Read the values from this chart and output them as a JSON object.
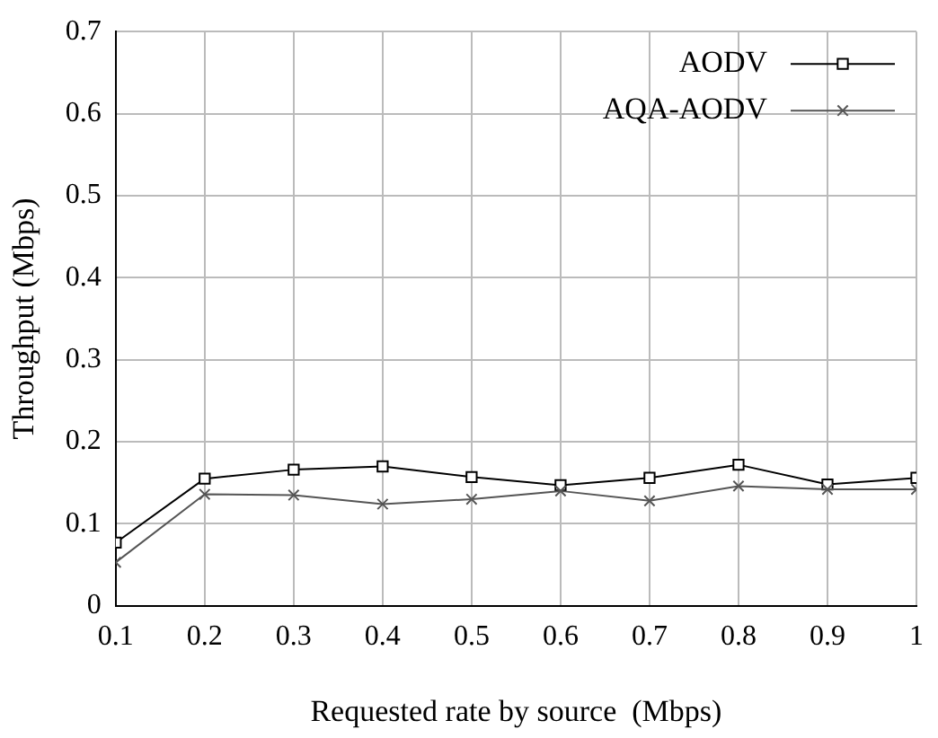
{
  "chart_data": {
    "type": "line",
    "xlabel": "Requested rate by source  (Mbps)",
    "ylabel": "Throughput (Mbps)",
    "x": [
      0.1,
      0.2,
      0.3,
      0.4,
      0.5,
      0.6,
      0.7,
      0.8,
      0.9,
      1
    ],
    "series": [
      {
        "name": "AODV",
        "color": "#000000",
        "marker": "square",
        "values": [
          0.077,
          0.155,
          0.166,
          0.17,
          0.157,
          0.147,
          0.156,
          0.172,
          0.148,
          0.156
        ]
      },
      {
        "name": "AQA-AODV",
        "color": "#555555",
        "marker": "cross",
        "values": [
          0.053,
          0.136,
          0.135,
          0.124,
          0.13,
          0.14,
          0.128,
          0.146,
          0.142,
          0.142
        ]
      }
    ],
    "xlim": [
      0.1,
      1
    ],
    "xticks": [
      0.1,
      0.2,
      0.3,
      0.4,
      0.5,
      0.6,
      0.7,
      0.8,
      0.9,
      1
    ],
    "ylim": [
      0,
      0.7
    ],
    "yticks": [
      0,
      0.1,
      0.2,
      0.3,
      0.4,
      0.5,
      0.6,
      0.7
    ],
    "grid": true,
    "legend": "top right",
    "line_style": "solid"
  }
}
